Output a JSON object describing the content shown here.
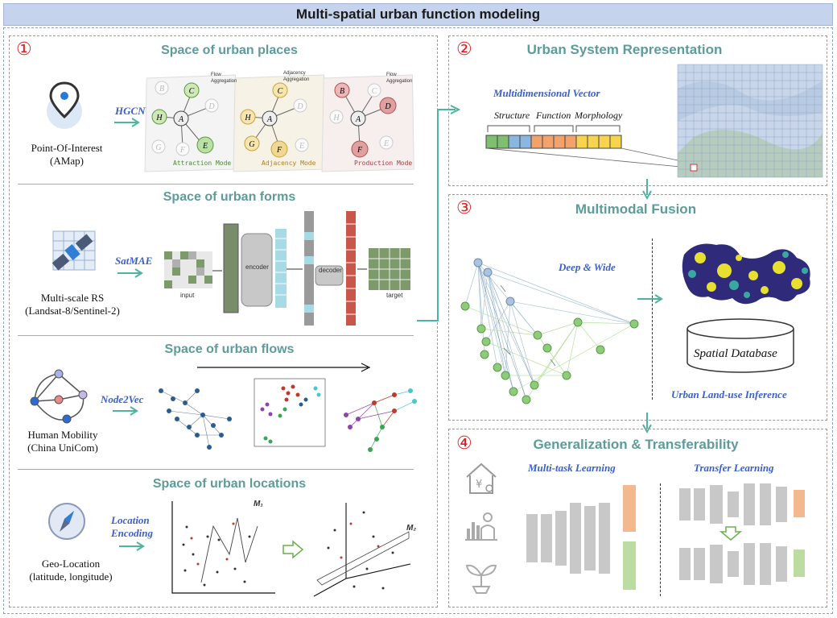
{
  "title": "Multi-spatial urban function modeling",
  "panel1": {
    "number": "①",
    "places": {
      "title": "Space of urban places",
      "source": "Point-Of-Interest",
      "source_sub": "(AMap)",
      "method": "HGCN",
      "modes": [
        "Attraction Mode",
        "Adjacency Mode",
        "Production Mode"
      ],
      "mode_legends": [
        [
          "Flow",
          "Aggregation"
        ],
        [
          "Adjacency",
          "Aggregation"
        ],
        [
          "Flow",
          "Aggregation"
        ]
      ],
      "nodes": [
        "A",
        "B",
        "C",
        "D",
        "E",
        "F",
        "G",
        "H"
      ]
    },
    "forms": {
      "title": "Space of urban forms",
      "source": "Multi-scale RS",
      "source_sub": "(Landsat-8/Sentinel-2)",
      "method": "SatMAE",
      "input_label": "input",
      "encoder_label": "encoder",
      "decoder_label": "decoder",
      "target_label": "target"
    },
    "flows": {
      "title": "Space of urban flows",
      "source": "Human Mobility",
      "source_sub": "(China UniCom)",
      "method": "Node2Vec"
    },
    "locations": {
      "title": "Space of urban locations",
      "source": "Geo-Location",
      "source_sub": "(latitude, longitude)",
      "method_line1": "Location",
      "method_line2": "Encoding",
      "m1": "M₁",
      "m2": "M₂"
    }
  },
  "panel2": {
    "number": "②",
    "title": "Urban System Representation",
    "vector_title": "Multidimensional Vector",
    "parts": [
      "Structure",
      "Function",
      "Morphology"
    ]
  },
  "panel3": {
    "number": "③",
    "title": "Multimodal Fusion",
    "model": "Deep & Wide",
    "database": "Spatial Database",
    "inference": "Urban Land-use Inference"
  },
  "panel4": {
    "number": "④",
    "title": "Generalization & Transferability",
    "multitask": "Multi-task Learning",
    "transfer": "Transfer Learning"
  },
  "colors": {
    "teal": "#5e9b9b",
    "arrow": "#4fb3a0",
    "method": "#3a5fc8",
    "number": "#e02020"
  }
}
